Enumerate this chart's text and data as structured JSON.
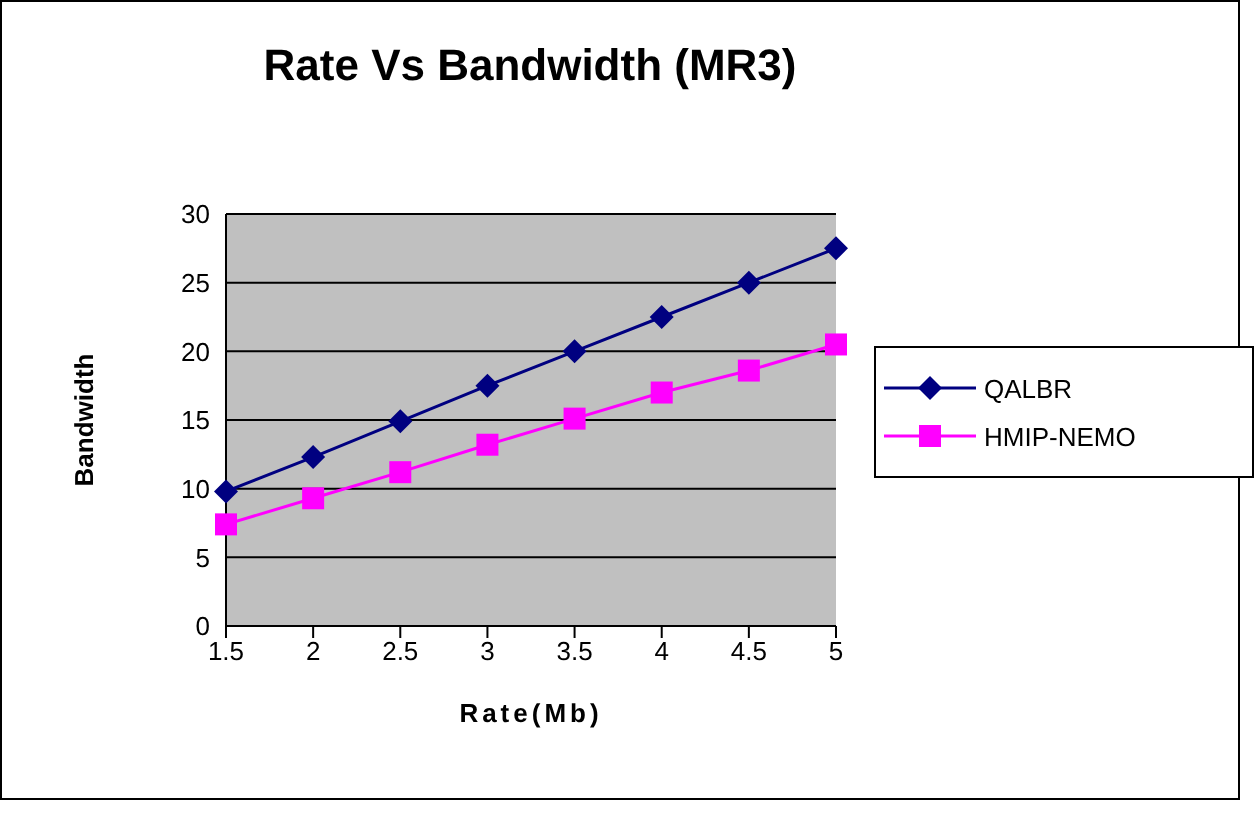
{
  "chart_data": {
    "type": "line",
    "title": "Rate Vs Bandwidth (MR3)",
    "xlabel": "Rate(Mb)",
    "ylabel": "Bandwidth",
    "categories": [
      "1.5",
      "2",
      "2.5",
      "3",
      "3.5",
      "4",
      "4.5",
      "5"
    ],
    "series": [
      {
        "name": "QALBR",
        "color": "#000080",
        "marker": "diamond",
        "values": [
          9.8,
          12.3,
          14.9,
          17.5,
          20,
          22.5,
          25,
          27.5
        ]
      },
      {
        "name": "HMIP-NEMO",
        "color": "#ff00ff",
        "marker": "square",
        "values": [
          7.4,
          9.3,
          11.2,
          13.2,
          15.1,
          17,
          18.6,
          20.5
        ]
      }
    ],
    "ylim": [
      0,
      30
    ],
    "yticks": [
      0,
      5,
      10,
      15,
      20,
      25,
      30
    ],
    "grid": "y",
    "legend": "right"
  }
}
